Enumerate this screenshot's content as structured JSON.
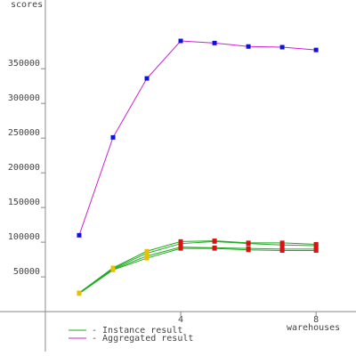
{
  "chart_data": {
    "type": "line",
    "y_label": "scores",
    "x_label": "warehouses",
    "x": [
      1,
      2,
      3,
      4,
      5,
      6,
      7,
      8
    ],
    "xlim": [
      -1.34,
      9.18
    ],
    "ylim": [
      -64000,
      449000
    ],
    "xticks": [
      4,
      8
    ],
    "yticks": [
      50000,
      100000,
      150000,
      200000,
      250000,
      300000,
      350000
    ],
    "instance_color": "#22aa22",
    "marker_colors": [
      "#e8c000",
      "#e8c000",
      "#e8c000",
      "#dd1111",
      "#dd1111",
      "#dd1111",
      "#dd1111",
      "#dd1111"
    ],
    "instances": [
      {
        "values": [
          27000,
          63000,
          87000,
          101000,
          102000,
          99000,
          99000,
          97000
        ]
      },
      {
        "values": [
          27000,
          62000,
          84000,
          98000,
          101000,
          98000,
          96000,
          95000
        ]
      },
      {
        "values": [
          27000,
          61000,
          80000,
          93000,
          92000,
          91000,
          90000,
          90000
        ]
      },
      {
        "values": [
          26000,
          60000,
          77000,
          91000,
          91000,
          89000,
          88000,
          88000
        ]
      }
    ],
    "aggregated": {
      "color": "#cc22cc",
      "marker_color": "#1111dd",
      "values": [
        110000,
        251000,
        336000,
        390000,
        387000,
        382000,
        381000,
        377000
      ]
    },
    "legend": [
      {
        "name": "- Instance result",
        "color": "#22aa22"
      },
      {
        "name": "- Aggregated result",
        "color": "#cc22cc"
      }
    ]
  }
}
